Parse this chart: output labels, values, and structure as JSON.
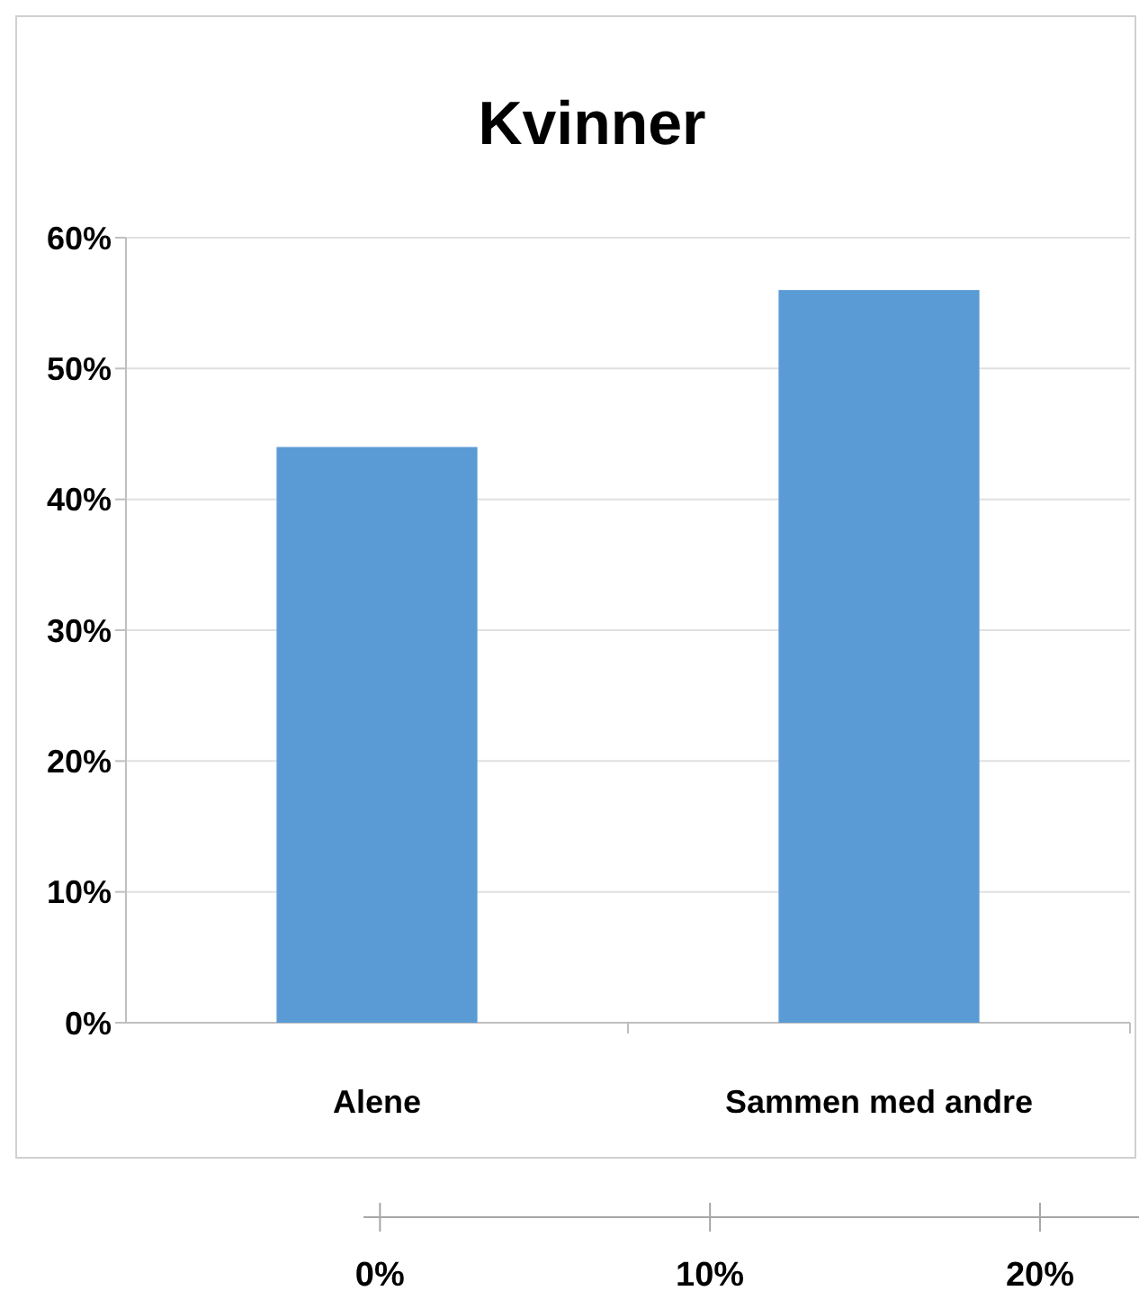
{
  "chart_data": {
    "type": "bar",
    "title": "Kvinner",
    "categories": [
      "Alene",
      "Sammen med andre"
    ],
    "values": [
      44,
      56
    ],
    "color": "#5b9bd5",
    "ylim": [
      0,
      60
    ],
    "yticks": [
      {
        "value": 0,
        "label": "0%"
      },
      {
        "value": 10,
        "label": "10%"
      },
      {
        "value": 20,
        "label": "20%"
      },
      {
        "value": 30,
        "label": "30%"
      },
      {
        "value": 40,
        "label": "40%"
      },
      {
        "value": 50,
        "label": "50%"
      },
      {
        "value": 60,
        "label": "60%"
      }
    ],
    "grid": "y",
    "x2lim": [
      -0.5,
      23
    ],
    "x2ticks": [
      {
        "value": 0,
        "label": "0%"
      },
      {
        "value": 10,
        "label": "10%"
      },
      {
        "value": 20,
        "label": "20%"
      }
    ]
  }
}
